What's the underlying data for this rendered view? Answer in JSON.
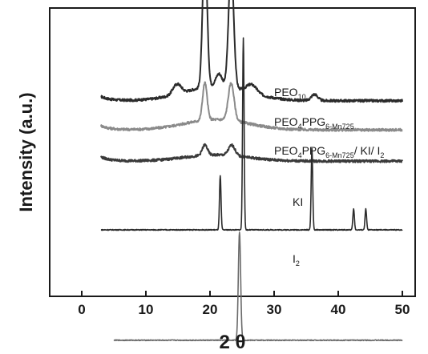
{
  "chart_data": {
    "type": "line",
    "xlabel": "2 θ",
    "ylabel": "Intensity (a.u.)",
    "xlim": [
      -5,
      52
    ],
    "xticks": [
      0,
      10,
      20,
      30,
      40,
      50
    ],
    "yunits": "a.u. (stacked, offset traces)",
    "grid": false,
    "legend": "none (inline labels next to each trace)",
    "series": [
      {
        "name": "PEO10",
        "label_parts": [
          [
            "PEO",
            ""
          ],
          [
            "10",
            "sub"
          ]
        ],
        "color": "#2b2b2b",
        "x_range": [
          3,
          50
        ],
        "baseline": 0.62,
        "peaks": [
          [
            14.5,
            0.03,
            0.5
          ],
          [
            15.2,
            0.03,
            0.5
          ],
          [
            19.2,
            0.68,
            0.35
          ],
          [
            21.4,
            0.06,
            0.5
          ],
          [
            23.3,
            0.58,
            0.4
          ],
          [
            26.5,
            0.04,
            0.8
          ],
          [
            36.3,
            0.03,
            0.5
          ]
        ],
        "hump": [
          21.0,
          0.07,
          5.0
        ]
      },
      {
        "name": "PEO4PPG6-Mn725",
        "label_parts": [
          [
            "PEO",
            ""
          ],
          [
            "4",
            "sub"
          ],
          [
            "PPG",
            ""
          ],
          [
            "6-Mn725",
            "sub"
          ]
        ],
        "color": "#8a8a8a",
        "x_range": [
          3,
          50
        ],
        "baseline": 0.48,
        "peaks": [
          [
            19.2,
            0.18,
            0.35
          ],
          [
            23.3,
            0.18,
            0.45
          ]
        ],
        "hump": [
          21.0,
          0.05,
          5.0
        ]
      },
      {
        "name": "PEO4PPG6-Mn725/ KI/ I2",
        "label_parts": [
          [
            "PEO",
            ""
          ],
          [
            "4",
            "sub"
          ],
          [
            "PPG",
            ""
          ],
          [
            "6-Mn725",
            "sub"
          ],
          [
            "/ KI/ I",
            ""
          ],
          [
            "2",
            "sub"
          ]
        ],
        "color": "#3a3a3a",
        "x_range": [
          3,
          50
        ],
        "baseline": 0.33,
        "peaks": [
          [
            19.2,
            0.05,
            0.4
          ],
          [
            23.4,
            0.05,
            0.5
          ]
        ],
        "hump": [
          21.0,
          0.03,
          5.0
        ]
      },
      {
        "name": "KI",
        "label_parts": [
          [
            "KI",
            ""
          ]
        ],
        "color": "#2b2b2b",
        "x_range": [
          3,
          50
        ],
        "baseline": 0.0,
        "peaks": [
          [
            21.6,
            0.26,
            0.12
          ],
          [
            25.2,
            0.92,
            0.12
          ],
          [
            35.9,
            0.39,
            0.12
          ],
          [
            42.4,
            0.1,
            0.12
          ],
          [
            44.3,
            0.1,
            0.12
          ]
        ],
        "hump": null
      },
      {
        "name": "I2",
        "label_parts": [
          [
            "I",
            ""
          ],
          [
            "2",
            "sub"
          ]
        ],
        "color": "#6a6a6a",
        "x_range": [
          5,
          50
        ],
        "baseline": -0.53,
        "peaks": [
          [
            24.6,
            0.52,
            0.18
          ]
        ],
        "hump": null
      }
    ]
  }
}
